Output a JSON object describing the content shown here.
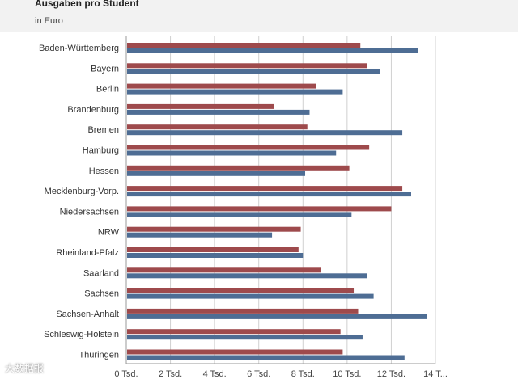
{
  "header": {
    "title": "Ausgaben pro Student",
    "subtitle": "in Euro"
  },
  "watermark": "大数据报",
  "colors": {
    "series_1": "#9e4a4c",
    "series_2": "#4e6d94",
    "grid": "#d0d0d0",
    "axis": "#999999"
  },
  "chart_data": {
    "type": "bar",
    "orientation": "horizontal",
    "title": "Ausgaben pro Student",
    "subtitle": "in Euro",
    "xlabel": "",
    "ylabel": "",
    "xlim": [
      0,
      14000
    ],
    "grid": true,
    "tick_values": [
      0,
      2000,
      4000,
      6000,
      8000,
      10000,
      12000,
      14000
    ],
    "tick_labels": [
      "0 Tsd.",
      "2 Tsd.",
      "4 Tsd.",
      "6 Tsd.",
      "8 Tsd.",
      "10 Tsd.",
      "12 Tsd.",
      "14 T..."
    ],
    "categories": [
      "Baden-Württemberg",
      "Bayern",
      "Berlin",
      "Brandenburg",
      "Bremen",
      "Hamburg",
      "Hessen",
      "Mecklenburg-Vorp.",
      "Niedersachsen",
      "NRW",
      "Rheinland-Pfalz",
      "Saarland",
      "Sachsen",
      "Sachsen-Anhalt",
      "Schleswig-Holstein",
      "Thüringen"
    ],
    "series": [
      {
        "color": "#9e4a4c",
        "values": [
          10600,
          10900,
          8600,
          6700,
          8200,
          11000,
          10100,
          12500,
          12000,
          7900,
          7800,
          8800,
          10300,
          10500,
          9700,
          9800
        ]
      },
      {
        "color": "#4e6d94",
        "values": [
          13200,
          11500,
          9800,
          8300,
          12500,
          9500,
          8100,
          12900,
          10200,
          6600,
          8000,
          10900,
          11200,
          13600,
          10700,
          12600
        ]
      }
    ]
  }
}
